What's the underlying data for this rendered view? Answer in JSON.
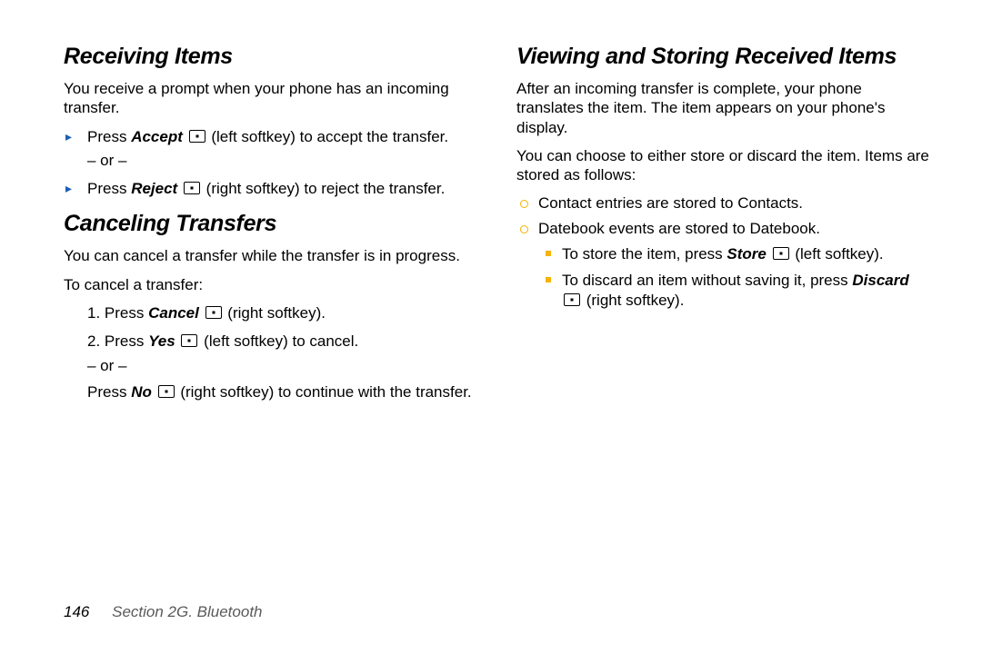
{
  "left": {
    "h1": "Receiving Items",
    "p1": "You receive a prompt when your phone has an incoming transfer.",
    "accept_pre": "Press ",
    "accept_bold": "Accept",
    "accept_post": " (left softkey) to accept the transfer.",
    "or1": "– or –",
    "reject_pre": "Press ",
    "reject_bold": "Reject",
    "reject_post": " (right softkey) to reject the transfer.",
    "h2": "Canceling Transfers",
    "p2": "You can cancel a transfer while the transfer is in progress.",
    "p3": "To cancel a transfer:",
    "s1_pre": "1. Press ",
    "s1_bold": "Cancel",
    "s1_post": " (right softkey).",
    "s2_pre": "2. Press ",
    "s2_bold": "Yes",
    "s2_post": " (left softkey) to cancel.",
    "or2": "– or –",
    "s3_pre": "Press ",
    "s3_bold": "No",
    "s3_post": " (right softkey) to continue with the transfer."
  },
  "right": {
    "h1": "Viewing and Storing Received Items",
    "p1": "After an incoming transfer is complete, your phone translates the item. The item appears on your phone's display.",
    "p2": "You can choose to either store or discard the item. Items are stored as follows:",
    "b1": "Contact entries are stored to Contacts.",
    "b2": "Datebook events are stored to Datebook.",
    "sb1_pre": "To store the item, press ",
    "sb1_bold": "Store",
    "sb1_post": " (left softkey).",
    "sb2_pre": "To discard an item without saving it, press ",
    "sb2_bold": "Discard",
    "sb2_post": " (right softkey)."
  },
  "footer": {
    "page": "146",
    "section": "Section 2G. Bluetooth"
  }
}
